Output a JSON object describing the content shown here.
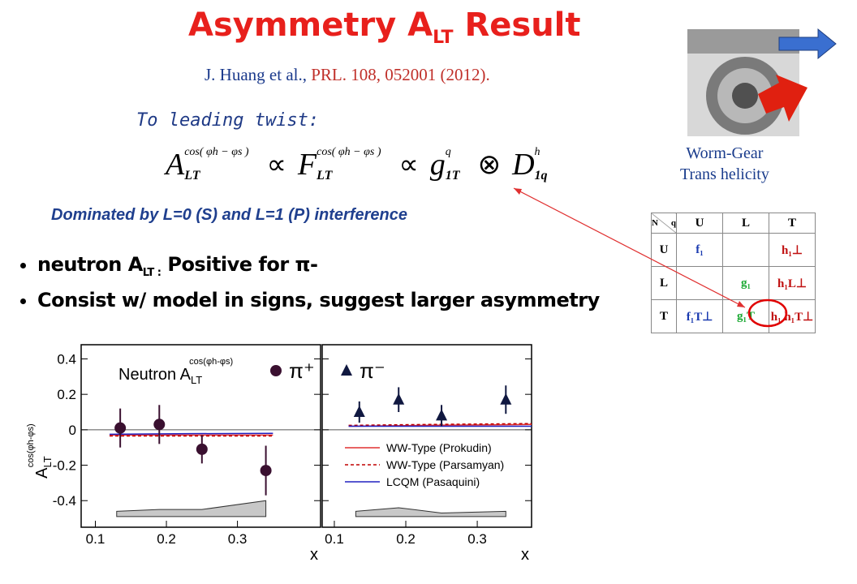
{
  "title": {
    "main": "Asymmetry A",
    "sub": "LT",
    "rest": " Result"
  },
  "reference": {
    "authors": "J. Huang et al., ",
    "journal": "PRL. 108, 052001 (2012)."
  },
  "leading_twist": "To leading twist:",
  "formula": [
    {
      "base": "A",
      "sup": "cos( φh − φs )",
      "sub": "LT"
    },
    {
      "op": "∝"
    },
    {
      "base": "F",
      "sup": "cos( φh − φs )",
      "sub": "LT"
    },
    {
      "op": "∝"
    },
    {
      "base": "g",
      "sup": "q",
      "sub": "1T"
    },
    {
      "op": "⊗"
    },
    {
      "base": "D",
      "sup": "h",
      "sub": "1q"
    }
  ],
  "dominated": "Dominated by L=0 (S) and L=1 (P) interference",
  "bullets": [
    {
      "pre": "neutron  A",
      "sub": "LT :",
      "post": "  Positive for π-"
    },
    {
      "pre": "Consist w/ model in signs, suggest larger asymmetry"
    }
  ],
  "worm_gear": [
    "Worm-Gear",
    "Trans helicity"
  ],
  "table": {
    "corner": [
      "N",
      "q"
    ],
    "columns": [
      "U",
      "L",
      "T"
    ],
    "rows": [
      {
        "label": "U",
        "cells": [
          "f₁",
          null,
          "h₁⊥"
        ]
      },
      {
        "label": "L",
        "cells": [
          null,
          "g₁",
          "h₁L⊥"
        ]
      },
      {
        "label": "T",
        "cells": [
          "f₁T⊥",
          "g₁T",
          "h₁  h₁T⊥"
        ]
      }
    ]
  },
  "chart_data": [
    {
      "type": "scatter",
      "legend_title": {
        "base": "Neutron A",
        "sub": "LT",
        "sup": "cos(φh-φs)"
      },
      "ylabel": {
        "base": "A",
        "sub": "LT",
        "sup": "cos(φh-φs)"
      },
      "xlabel": "x",
      "xlim": [
        0.08,
        0.417
      ],
      "ylim": [
        -0.55,
        0.48
      ],
      "xticks": [
        0.1,
        0.2,
        0.3
      ],
      "yticks": [
        -0.4,
        -0.2,
        0,
        0.2,
        0.4
      ],
      "series": [
        {
          "name": "π⁺",
          "marker": "circle",
          "color": "#3a1030",
          "x": [
            0.135,
            0.19,
            0.25,
            0.34
          ],
          "values": [
            0.01,
            0.03,
            -0.11,
            -0.23
          ],
          "errors": [
            0.11,
            0.11,
            0.08,
            0.14
          ]
        }
      ],
      "curves": [
        {
          "color": "#e03030",
          "dashed": false,
          "x": [
            0.12,
            0.23,
            0.35
          ],
          "values": [
            -0.03,
            -0.03,
            -0.03
          ]
        },
        {
          "color": "#c00000",
          "dashed": true,
          "x": [
            0.12,
            0.23,
            0.35
          ],
          "values": [
            -0.035,
            -0.035,
            -0.035
          ]
        },
        {
          "color": "#2020c0",
          "dashed": false,
          "x": [
            0.12,
            0.23,
            0.35
          ],
          "values": [
            -0.025,
            -0.022,
            -0.02
          ]
        }
      ],
      "systematic": {
        "x": [
          0.13,
          0.19,
          0.25,
          0.34
        ],
        "values": [
          -0.46,
          -0.45,
          -0.45,
          -0.4
        ],
        "floor": -0.49
      }
    },
    {
      "type": "scatter",
      "xlabel": "x",
      "xlim": [
        0.083,
        0.376
      ],
      "ylim": [
        -0.55,
        0.48
      ],
      "xticks": [
        0.1,
        0.2,
        0.3
      ],
      "yticks": [
        -0.4,
        -0.2,
        0,
        0.2,
        0.4
      ],
      "series": [
        {
          "name": "π⁻",
          "marker": "triangle",
          "color": "#101840",
          "x": [
            0.135,
            0.19,
            0.25,
            0.34
          ],
          "values": [
            0.1,
            0.17,
            0.08,
            0.17
          ],
          "errors": [
            0.06,
            0.07,
            0.06,
            0.08
          ]
        }
      ],
      "curves": [
        {
          "name": "WW-Type (Prokudin)",
          "color": "#e03030",
          "dashed": false,
          "x": [
            0.12,
            0.23,
            0.38
          ],
          "values": [
            0.02,
            0.025,
            0.03
          ]
        },
        {
          "name": "WW-Type (Parsamyan)",
          "color": "#c00000",
          "dashed": true,
          "x": [
            0.12,
            0.23,
            0.38
          ],
          "values": [
            0.025,
            0.03,
            0.035
          ]
        },
        {
          "name": "LCQM (Pasaquini)",
          "color": "#2020c0",
          "dashed": false,
          "x": [
            0.12,
            0.23,
            0.38
          ],
          "values": [
            0.02,
            0.02,
            0.02
          ]
        }
      ],
      "systematic": {
        "x": [
          0.13,
          0.19,
          0.25,
          0.34
        ],
        "values": [
          -0.46,
          -0.44,
          -0.47,
          -0.46
        ],
        "floor": -0.49
      }
    }
  ]
}
